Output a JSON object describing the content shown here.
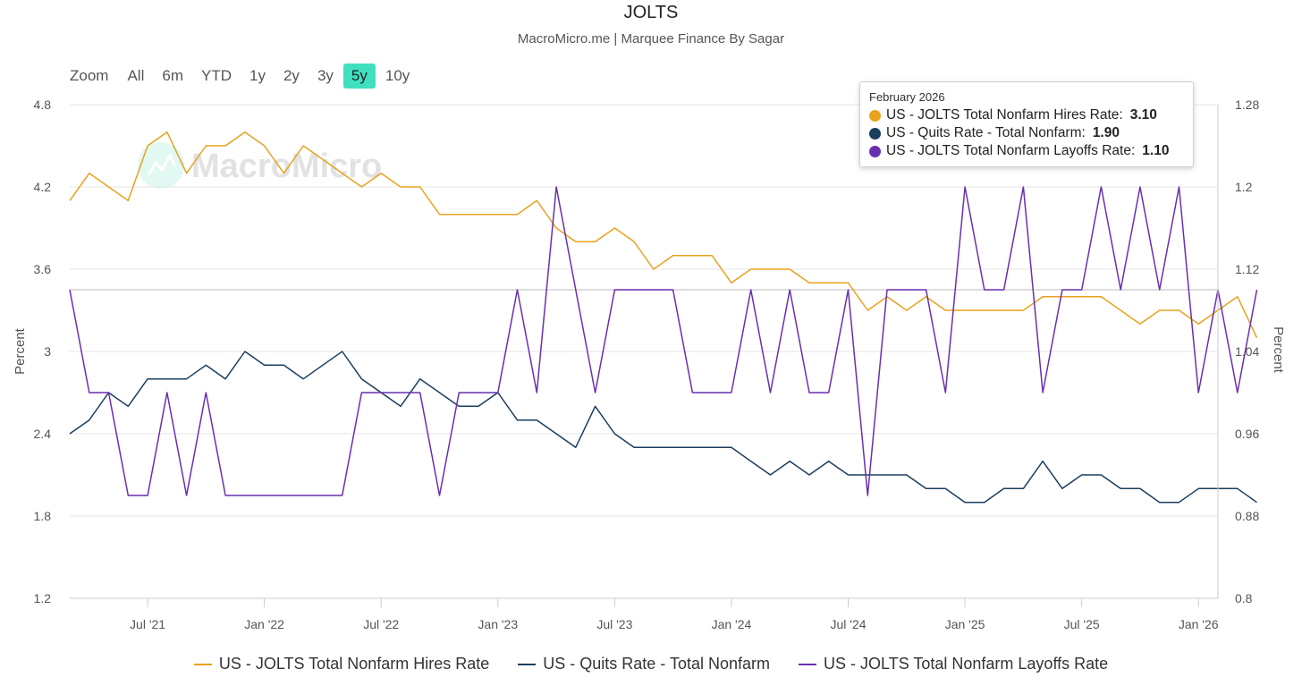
{
  "title": "JOLTS",
  "subtitle": "MacroMicro.me | Marquee Finance By Sagar",
  "watermark": "MacroMicro",
  "zoom": {
    "label": "Zoom",
    "buttons": [
      "All",
      "6m",
      "YTD",
      "1y",
      "2y",
      "3y",
      "5y",
      "10y"
    ],
    "active": "5y"
  },
  "tooltip": {
    "date": "February 2026",
    "rows": [
      {
        "label": "US - JOLTS Total Nonfarm Hires Rate:",
        "value": "3.10",
        "color": "#e8a21e"
      },
      {
        "label": "US - Quits Rate - Total Nonfarm:",
        "value": "1.90",
        "color": "#1b3d5e"
      },
      {
        "label": "US - JOLTS Total Nonfarm Layoffs Rate:",
        "value": "1.10",
        "color": "#6a2fb0"
      }
    ]
  },
  "chart_data": {
    "type": "line",
    "x_start": "2021-03",
    "x_end": "2026-02",
    "x_tick_labels": [
      "Jul '21",
      "Jan '22",
      "Jul '22",
      "Jan '23",
      "Jul '23",
      "Jan '24",
      "Jul '24",
      "Jan '25",
      "Jul '25",
      "Jan '26"
    ],
    "x_tick_dates": [
      "2021-07",
      "2022-01",
      "2022-07",
      "2023-01",
      "2023-07",
      "2024-01",
      "2024-07",
      "2025-01",
      "2025-07",
      "2026-01"
    ],
    "y_left": {
      "label": "Percent",
      "min": 1.2,
      "max": 4.8,
      "ticks": [
        "4.8",
        "4.2",
        "3.6",
        "3",
        "2.4",
        "1.8",
        "1.2"
      ]
    },
    "y_right": {
      "label": "Percent",
      "min": 0.8,
      "max": 1.28,
      "ticks": [
        "1.28",
        "1.2",
        "1.12",
        "1.04",
        "0.96",
        "0.88",
        "0.8"
      ]
    },
    "series": [
      {
        "name": "US - JOLTS Total Nonfarm Hires Rate",
        "axis": "left",
        "color": "#e8a21e",
        "values": [
          4.1,
          4.3,
          4.2,
          4.1,
          4.5,
          4.6,
          4.3,
          4.5,
          4.5,
          4.6,
          4.5,
          4.3,
          4.5,
          4.4,
          4.3,
          4.2,
          4.3,
          4.2,
          4.2,
          4.0,
          4.0,
          4.0,
          4.0,
          4.0,
          4.1,
          3.9,
          3.8,
          3.8,
          3.9,
          3.8,
          3.6,
          3.7,
          3.7,
          3.7,
          3.5,
          3.6,
          3.6,
          3.6,
          3.5,
          3.5,
          3.5,
          3.3,
          3.4,
          3.3,
          3.4,
          3.3,
          3.3,
          3.3,
          3.3,
          3.3,
          3.4,
          3.4,
          3.4,
          3.4,
          3.3,
          3.2,
          3.3,
          3.3,
          3.2,
          3.3,
          3.4,
          3.1
        ]
      },
      {
        "name": "US - Quits Rate - Total Nonfarm",
        "axis": "left",
        "color": "#1b3d5e",
        "values": [
          2.4,
          2.5,
          2.7,
          2.6,
          2.8,
          2.8,
          2.8,
          2.9,
          2.8,
          3.0,
          2.9,
          2.9,
          2.8,
          2.9,
          3.0,
          2.8,
          2.7,
          2.6,
          2.8,
          2.7,
          2.6,
          2.6,
          2.7,
          2.5,
          2.5,
          2.4,
          2.3,
          2.6,
          2.4,
          2.3,
          2.3,
          2.3,
          2.3,
          2.3,
          2.3,
          2.2,
          2.1,
          2.2,
          2.1,
          2.2,
          2.1,
          2.1,
          2.1,
          2.1,
          2.0,
          2.0,
          1.9,
          1.9,
          2.0,
          2.0,
          2.2,
          2.0,
          2.1,
          2.1,
          2.0,
          2.0,
          1.9,
          1.9,
          2.0,
          2.0,
          2.0,
          1.9
        ]
      },
      {
        "name": "US - JOLTS Total Nonfarm Layoffs Rate",
        "axis": "right",
        "color": "#6a2fb0",
        "values": [
          1.1,
          1.0,
          1.0,
          0.9,
          0.9,
          1.0,
          0.9,
          1.0,
          0.9,
          0.9,
          0.9,
          0.9,
          0.9,
          0.9,
          0.9,
          1.0,
          1.0,
          1.0,
          1.0,
          0.9,
          1.0,
          1.0,
          1.0,
          1.1,
          1.0,
          1.2,
          1.1,
          1.0,
          1.1,
          1.1,
          1.1,
          1.1,
          1.0,
          1.0,
          1.0,
          1.1,
          1.0,
          1.1,
          1.0,
          1.0,
          1.1,
          0.9,
          1.1,
          1.1,
          1.1,
          1.0,
          1.2,
          1.1,
          1.1,
          1.2,
          1.0,
          1.1,
          1.1,
          1.2,
          1.1,
          1.2,
          1.1,
          1.2,
          1.0,
          1.1,
          1.0,
          1.1
        ]
      }
    ],
    "legend": [
      "US - JOLTS Total Nonfarm Hires Rate",
      "US - Quits Rate - Total Nonfarm",
      "US - JOLTS Total Nonfarm Layoffs Rate"
    ],
    "legend_position": "bottom",
    "grid": true
  }
}
